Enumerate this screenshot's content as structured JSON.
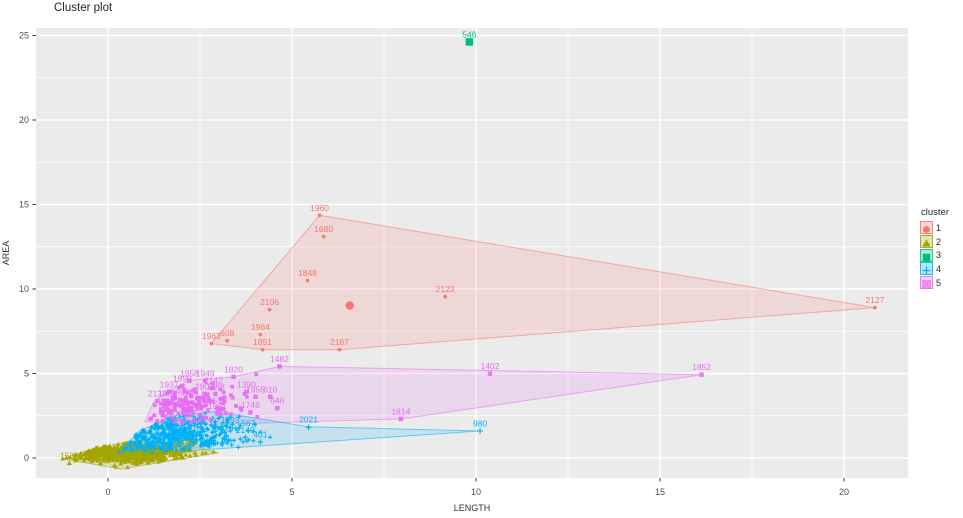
{
  "chart_data": {
    "type": "scatter",
    "title": "Cluster plot",
    "xlabel": "LENGTH",
    "ylabel": "AREA",
    "legend_title": "cluster",
    "legend_position": "right",
    "grid": "major+minor",
    "panel_bg": "#EBEBEB",
    "grid_color": "#FFFFFF",
    "tick_label_color": "#4D4D4D",
    "xlim": [
      -1.96,
      21.74
    ],
    "ylim": [
      -1.18,
      25.44
    ],
    "x_ticks": [
      0,
      5,
      10,
      15,
      20
    ],
    "y_ticks": [
      0,
      5,
      10,
      15,
      20,
      25
    ],
    "clusters": [
      {
        "id": "1",
        "color": "#F8766D",
        "shape": "circle",
        "points": [
          {
            "label": "1960",
            "x": 5.75,
            "y": 14.36
          },
          {
            "label": "1680",
            "x": 5.86,
            "y": 13.1
          },
          {
            "label": "1848",
            "x": 5.42,
            "y": 10.5
          },
          {
            "label": "2106",
            "x": 4.39,
            "y": 8.78
          },
          {
            "label": "2123",
            "x": 9.16,
            "y": 9.55
          },
          {
            "label": "2127",
            "x": 20.84,
            "y": 8.9
          },
          {
            "label": "1963",
            "x": 2.81,
            "y": 6.77
          },
          {
            "label": "608",
            "x": 3.24,
            "y": 6.94
          },
          {
            "label": "1964",
            "x": 4.14,
            "y": 7.3
          },
          {
            "label": "1851",
            "x": 4.2,
            "y": 6.41
          },
          {
            "label": "2167",
            "x": 6.29,
            "y": 6.41
          }
        ],
        "centroid": {
          "x": 6.57,
          "y": 9.02
        },
        "hull": [
          [
            5.75,
            14.36
          ],
          [
            20.84,
            8.9
          ],
          [
            6.29,
            6.41
          ],
          [
            4.2,
            6.41
          ],
          [
            2.81,
            6.77
          ]
        ]
      },
      {
        "id": "2",
        "color": "#A3A500",
        "shape": "triangle",
        "points": [
          {
            "label": "1531",
            "x": -1.05,
            "y": -0.3
          },
          {
            "label": "1987",
            "x": 2.15,
            "y": 0.45
          }
        ],
        "hull": [
          [
            -1.25,
            -0.05
          ],
          [
            -0.3,
            0.62
          ],
          [
            0.7,
            1.0
          ],
          [
            2.1,
            0.85
          ],
          [
            3.0,
            0.3
          ],
          [
            2.2,
            0.02
          ],
          [
            0.35,
            -0.65
          ]
        ],
        "cloud": {
          "count": 700,
          "cx": 0.45,
          "cy": 0.32,
          "sx": 0.8,
          "sy": 0.3
        }
      },
      {
        "id": "3",
        "color": "#00BF7D",
        "shape": "square",
        "points": [
          {
            "label": "546",
            "x": 9.82,
            "y": 24.62
          }
        ]
      },
      {
        "id": "4",
        "color": "#00B0F6",
        "shape": "plus",
        "points": [
          {
            "label": "2021",
            "x": 5.45,
            "y": 1.82
          },
          {
            "label": "980",
            "x": 10.11,
            "y": 1.6
          },
          {
            "label": "1993",
            "x": 3.32,
            "y": 1.8
          },
          {
            "label": "567",
            "x": 3.81,
            "y": 1.62
          },
          {
            "label": "829",
            "x": 3.22,
            "y": 1.31
          },
          {
            "label": "2149",
            "x": 3.73,
            "y": 1.22
          },
          {
            "label": "401",
            "x": 4.14,
            "y": 0.95
          }
        ],
        "hull": [
          [
            0.3,
            0.35
          ],
          [
            0.85,
            1.6
          ],
          [
            1.8,
            2.5
          ],
          [
            2.9,
            2.75
          ],
          [
            5.45,
            1.85
          ],
          [
            10.11,
            1.6
          ],
          [
            1.0,
            0.25
          ]
        ],
        "cloud": {
          "count": 520,
          "cx": 1.55,
          "cy": 1.45,
          "sx": 1.0,
          "sy": 0.75
        }
      },
      {
        "id": "5",
        "color": "#E76BF3",
        "shape": "squarex",
        "points": [
          {
            "label": "1482",
            "x": 4.66,
            "y": 5.42
          },
          {
            "label": "1820",
            "x": 3.41,
            "y": 4.8
          },
          {
            "label": "1402",
            "x": 10.38,
            "y": 4.99
          },
          {
            "label": "1852",
            "x": 16.13,
            "y": 4.93
          },
          {
            "label": "1814",
            "x": 7.96,
            "y": 2.31
          },
          {
            "label": "1958",
            "x": 2.21,
            "y": 4.57
          },
          {
            "label": "1949",
            "x": 2.64,
            "y": 4.57
          },
          {
            "label": "1890",
            "x": 2.02,
            "y": 4.27
          },
          {
            "label": "1937",
            "x": 1.66,
            "y": 3.92
          },
          {
            "label": "2142",
            "x": 2.86,
            "y": 4.15
          },
          {
            "label": "1805",
            "x": 2.62,
            "y": 3.8
          },
          {
            "label": "1788",
            "x": 2.92,
            "y": 3.8
          },
          {
            "label": "2132",
            "x": 1.34,
            "y": 3.38
          },
          {
            "label": "1884",
            "x": 1.61,
            "y": 3.38
          },
          {
            "label": "1897",
            "x": 1.96,
            "y": 3.44
          },
          {
            "label": "1390",
            "x": 3.76,
            "y": 3.92
          },
          {
            "label": "1955",
            "x": 4.01,
            "y": 3.62
          },
          {
            "label": "610",
            "x": 4.41,
            "y": 3.62
          },
          {
            "label": "1543",
            "x": 2.1,
            "y": 2.79
          },
          {
            "label": "1577",
            "x": 2.97,
            "y": 2.97
          },
          {
            "label": "1931",
            "x": 2.97,
            "y": 2.63
          },
          {
            "label": "1748",
            "x": 3.87,
            "y": 2.7
          },
          {
            "label": "646",
            "x": 4.6,
            "y": 2.95
          }
        ],
        "hull": [
          [
            1.0,
            2.15
          ],
          [
            1.25,
            3.35
          ],
          [
            1.66,
            3.98
          ],
          [
            2.21,
            4.6
          ],
          [
            3.41,
            4.8
          ],
          [
            4.66,
            5.42
          ],
          [
            16.13,
            4.93
          ],
          [
            7.96,
            2.31
          ],
          [
            2.3,
            1.95
          ]
        ],
        "cloud": {
          "count": 160,
          "cx": 2.1,
          "cy": 3.2,
          "sx": 0.75,
          "sy": 0.65
        }
      }
    ]
  }
}
